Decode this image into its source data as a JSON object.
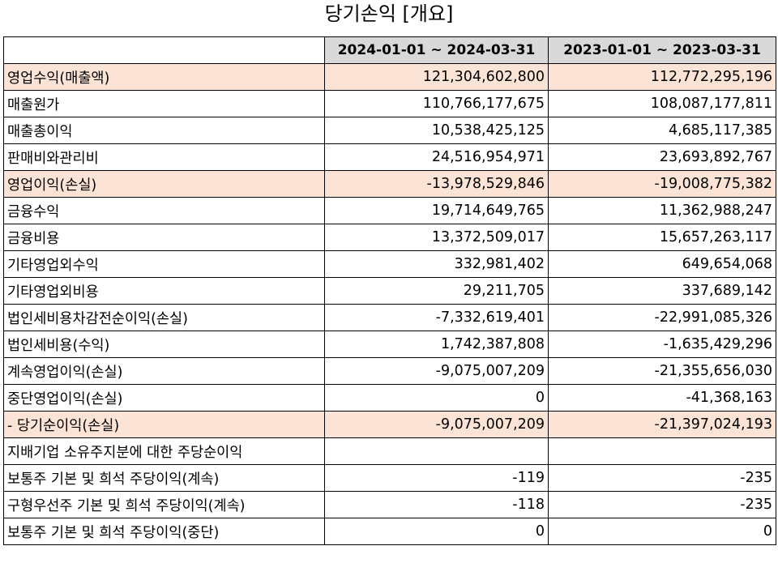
{
  "title": "당기손익 [개요]",
  "columns": [
    "",
    "2024-01-01 ~ 2024-03-31",
    "2023-01-01 ~ 2023-03-31"
  ],
  "rows": [
    {
      "label": "영업수익(매출액)",
      "v1": "121,304,602,800",
      "v2": "112,772,295,196",
      "highlight": true,
      "indent": false
    },
    {
      "label": "매출원가",
      "v1": "110,766,177,675",
      "v2": "108,087,177,811",
      "highlight": false,
      "indent": false
    },
    {
      "label": "매출총이익",
      "v1": "10,538,425,125",
      "v2": "4,685,117,385",
      "highlight": false,
      "indent": false
    },
    {
      "label": "판매비와관리비",
      "v1": "24,516,954,971",
      "v2": "23,693,892,767",
      "highlight": false,
      "indent": false
    },
    {
      "label": "영업이익(손실)",
      "v1": "-13,978,529,846",
      "v2": "-19,008,775,382",
      "highlight": true,
      "indent": false
    },
    {
      "label": "금융수익",
      "v1": "19,714,649,765",
      "v2": "11,362,988,247",
      "highlight": false,
      "indent": false
    },
    {
      "label": "금융비용",
      "v1": "13,372,509,017",
      "v2": "15,657,263,117",
      "highlight": false,
      "indent": false
    },
    {
      "label": "기타영업외수익",
      "v1": "332,981,402",
      "v2": "649,654,068",
      "highlight": false,
      "indent": false
    },
    {
      "label": "기타영업외비용",
      "v1": "29,211,705",
      "v2": "337,689,142",
      "highlight": false,
      "indent": false
    },
    {
      "label": "법인세비용차감전순이익(손실)",
      "v1": "-7,332,619,401",
      "v2": "-22,991,085,326",
      "highlight": false,
      "indent": false
    },
    {
      "label": "법인세비용(수익)",
      "v1": "1,742,387,808",
      "v2": "-1,635,429,296",
      "highlight": false,
      "indent": false
    },
    {
      "label": "계속영업이익(손실)",
      "v1": "-9,075,007,209",
      "v2": "-21,355,656,030",
      "highlight": false,
      "indent": false
    },
    {
      "label": "중단영업이익(손실)",
      "v1": "0",
      "v2": "-41,368,163",
      "highlight": false,
      "indent": false
    },
    {
      "label": "- 당기순이익(손실)",
      "v1": "-9,075,007,209",
      "v2": "-21,397,024,193",
      "highlight": true,
      "indent": false
    },
    {
      "label": "지배기업 소유주지분에 대한 주당순이익",
      "v1": "",
      "v2": "",
      "highlight": false,
      "indent": false
    },
    {
      "label": "보통주 기본 및 희석 주당이익(계속)",
      "v1": "-119",
      "v2": "-235",
      "highlight": false,
      "indent": true
    },
    {
      "label": "구형우선주 기본 및 희석 주당이익(계속)",
      "v1": "-118",
      "v2": "-235",
      "highlight": false,
      "indent": true
    },
    {
      "label": "보통주 기본 및 희석 주당이익(중단)",
      "v1": "0",
      "v2": "0",
      "highlight": false,
      "indent": true
    }
  ],
  "colors": {
    "header_bg": "#d9d9d9",
    "highlight_bg": "#fbe4d5",
    "border": "#000000"
  }
}
